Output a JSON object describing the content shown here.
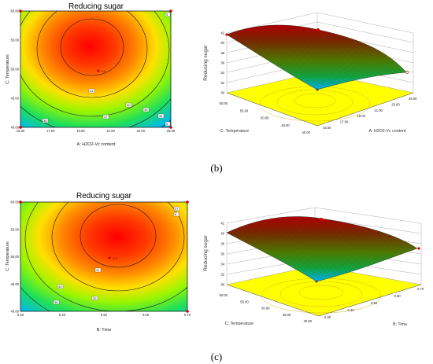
{
  "panels": {
    "b": "(b)",
    "c": "(c)"
  },
  "chart_data": [
    {
      "type": "contour",
      "title": "Reducing sugar",
      "xlabel": "A: H2O2-Vc content",
      "ylabel": "C: Temperature",
      "xticks": [
        "15.00",
        "17.00",
        "19.00",
        "21.00",
        "23.00",
        "25.00"
      ],
      "yticks": [
        "40.00",
        "45.00",
        "50.00",
        "55.00",
        "60.00"
      ],
      "xlim": [
        15,
        25
      ],
      "ylim": [
        40,
        60
      ],
      "center_label": "1.0",
      "contour_labels": [
        "41",
        "40",
        "39",
        "38",
        "37",
        "36"
      ],
      "design_point_labels": [
        "5",
        "5"
      ],
      "colors": [
        "#ff0000",
        "#ff6a00",
        "#ffd400",
        "#b4ff00",
        "#22e000",
        "#00c8ff"
      ]
    },
    {
      "type": "surface",
      "title": "",
      "zlabel": "Reducing sugar",
      "xlabel": "A: H2O2-Vc content",
      "ylabel": "C: Temperature",
      "zticks": [
        "30",
        "32",
        "34",
        "36",
        "38",
        "40",
        "42"
      ],
      "xticks": [
        "15.00",
        "17.00",
        "19.00",
        "21.00",
        "23.00",
        "25.00"
      ],
      "yticks": [
        "40.00",
        "45.00",
        "50.00",
        "55.00",
        "60.00"
      ]
    },
    {
      "type": "contour",
      "title": "Reducing sugar",
      "xlabel": "B: Time",
      "ylabel": "C: Temperature",
      "xticks": [
        "0.30",
        "0.40",
        "0.50",
        "0.60",
        "0.70"
      ],
      "yticks": [
        "40.00",
        "45.00",
        "50.00",
        "55.00",
        "60.00"
      ],
      "xlim": [
        0.3,
        0.7
      ],
      "ylim": [
        40,
        60
      ],
      "center_label": "1.0",
      "contour_labels": [
        "41",
        "40",
        "39",
        "38",
        "37"
      ],
      "design_point_labels": [
        "5"
      ],
      "colors": [
        "#ff0000",
        "#ff6a00",
        "#ffd400",
        "#b4ff00",
        "#22e000",
        "#00c8ff"
      ]
    },
    {
      "type": "surface",
      "title": "",
      "zlabel": "Reducing sugar",
      "xlabel": "B: Time",
      "ylabel": "C: Temperature",
      "zticks": [
        "30",
        "32",
        "34",
        "36",
        "38",
        "40",
        "42"
      ],
      "xticks": [
        "0.30",
        "0.40",
        "0.50",
        "0.60",
        "0.70"
      ],
      "yticks": [
        "40.00",
        "45.00",
        "50.00",
        "55.00",
        "60.00"
      ]
    }
  ]
}
